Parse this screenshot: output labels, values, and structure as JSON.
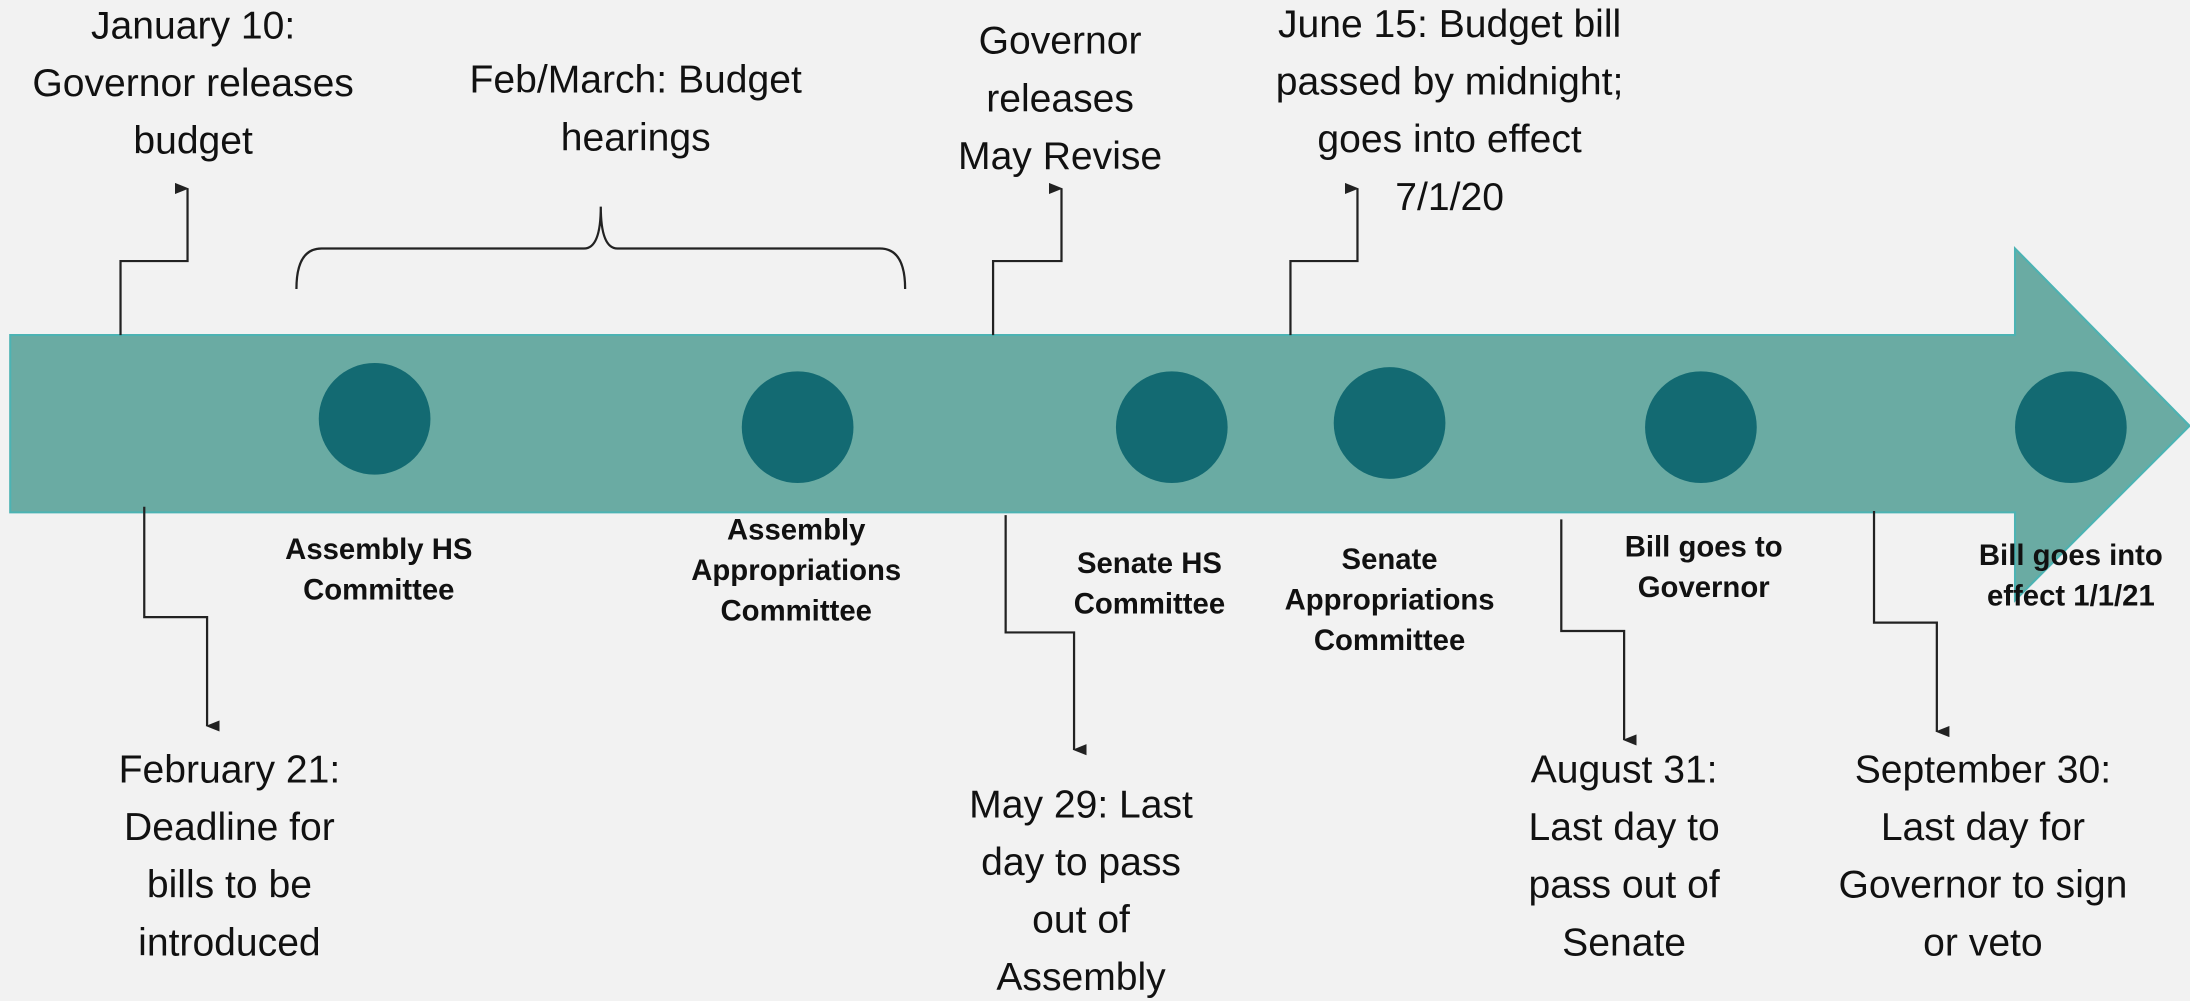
{
  "milestones": [
    {
      "lines": [
        "Assembly HS",
        "Committee"
      ]
    },
    {
      "lines": [
        "Assembly",
        "Appropriations",
        "Committee"
      ]
    },
    {
      "lines": [
        "Senate HS",
        "Committee"
      ]
    },
    {
      "lines": [
        "Senate",
        "Appropriations",
        "Committee"
      ]
    },
    {
      "lines": [
        "Bill goes to",
        "Governor"
      ]
    },
    {
      "lines": [
        "Bill goes into",
        "effect 1/1/21"
      ]
    }
  ],
  "events_above": [
    {
      "lines": [
        "January 10:",
        "Governor releases",
        "budget"
      ]
    },
    {
      "lines": [
        "Feb/March: Budget",
        "hearings"
      ]
    },
    {
      "lines": [
        "Governor",
        "releases",
        "May Revise"
      ]
    },
    {
      "lines": [
        "June 15: Budget bill",
        "passed by midnight;",
        "goes into effect",
        "7/1/20"
      ]
    }
  ],
  "events_below": [
    {
      "lines": [
        "February 21:",
        "Deadline for",
        "bills to be",
        "introduced"
      ]
    },
    {
      "lines": [
        "May 29: Last",
        "day to pass",
        "out of",
        "Assembly"
      ]
    },
    {
      "lines": [
        "August 31:",
        "Last day to",
        "pass out of",
        "Senate"
      ]
    },
    {
      "lines": [
        "September 30:",
        "Last day for",
        "Governor to sign",
        "or veto"
      ]
    }
  ]
}
